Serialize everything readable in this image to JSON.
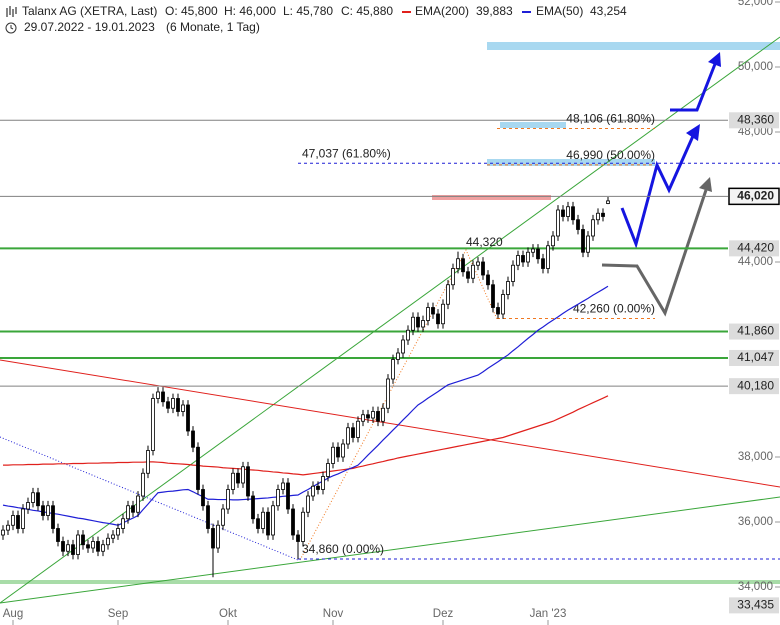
{
  "chart_data": {
    "type": "candlestick",
    "title": "Talanx AG (XETRA, Last)",
    "ohlc": [
      "O: 45,800",
      "H: 46,000",
      "L: 45,780",
      "C: 45,880"
    ],
    "date_range": "29.07.2022 - 19.01.2023",
    "period": "(6 Monate, 1 Tag)",
    "categories": [
      null,
      null,
      "Aug",
      null,
      null,
      null,
      null,
      null,
      null,
      null,
      null,
      null,
      null,
      null,
      null,
      null,
      null,
      null,
      null,
      null,
      null,
      null,
      null,
      "Sep",
      null,
      null,
      null,
      null,
      null,
      null,
      null,
      null,
      null,
      null,
      null,
      null,
      null,
      null,
      null,
      null,
      null,
      null,
      null,
      null,
      null,
      "Okt",
      null,
      null,
      null,
      null,
      null,
      null,
      null,
      null,
      null,
      null,
      null,
      null,
      null,
      null,
      null,
      null,
      null,
      null,
      null,
      null,
      "Nov",
      null,
      null,
      null,
      null,
      null,
      null,
      null,
      null,
      null,
      null,
      null,
      null,
      null,
      null,
      null,
      null,
      null,
      null,
      null,
      null,
      null,
      "Dez",
      null,
      null,
      null,
      null,
      null,
      null,
      null,
      null,
      null,
      null,
      null,
      null,
      null,
      null,
      null,
      null,
      null,
      null,
      null,
      null,
      "Jan '23",
      null,
      null,
      null,
      null,
      null,
      null,
      null,
      null,
      null,
      null,
      null,
      null
    ],
    "candles": [
      [
        35600,
        35900,
        35450,
        35750
      ],
      [
        35750,
        36050,
        35600,
        35900
      ],
      [
        35900,
        36350,
        35750,
        36200
      ],
      [
        36200,
        36350,
        35650,
        35800
      ],
      [
        35800,
        36550,
        35650,
        36400
      ],
      [
        36400,
        36750,
        36250,
        36600
      ],
      [
        36600,
        37050,
        36450,
        36900
      ],
      [
        36900,
        37050,
        36350,
        36500
      ],
      [
        36500,
        36650,
        36050,
        36200
      ],
      [
        36200,
        36650,
        36050,
        36500
      ],
      [
        36500,
        36650,
        35650,
        35800
      ],
      [
        35800,
        35950,
        35250,
        35400
      ],
      [
        35400,
        35550,
        34950,
        35100
      ],
      [
        35100,
        35450,
        34950,
        35300
      ],
      [
        35300,
        35450,
        34850,
        35000
      ],
      [
        35000,
        35750,
        34850,
        35600
      ],
      [
        35600,
        35750,
        35150,
        35300
      ],
      [
        35300,
        35450,
        35050,
        35200
      ],
      [
        35200,
        35550,
        35050,
        35400
      ],
      [
        35400,
        35550,
        34950,
        35100
      ],
      [
        35100,
        35450,
        34950,
        35300
      ],
      [
        35300,
        35650,
        35150,
        35500
      ],
      [
        35500,
        35750,
        35350,
        35600
      ],
      [
        35600,
        35950,
        35450,
        35800
      ],
      [
        35800,
        36250,
        35650,
        36100
      ],
      [
        36100,
        36650,
        35950,
        36500
      ],
      [
        36500,
        36650,
        36150,
        36300
      ],
      [
        36300,
        36950,
        36150,
        36800
      ],
      [
        36800,
        37650,
        36650,
        37500
      ],
      [
        37500,
        38350,
        37350,
        38200
      ],
      [
        38200,
        39950,
        38050,
        39800
      ],
      [
        39800,
        40150,
        39650,
        40000
      ],
      [
        40000,
        40150,
        39550,
        39700
      ],
      [
        39700,
        39850,
        39350,
        39500
      ],
      [
        39500,
        39950,
        39350,
        39800
      ],
      [
        39800,
        39950,
        39250,
        39400
      ],
      [
        39400,
        39750,
        39250,
        39600
      ],
      [
        39600,
        39750,
        38650,
        38800
      ],
      [
        38800,
        38950,
        38150,
        38300
      ],
      [
        38300,
        38450,
        36850,
        37000
      ],
      [
        37000,
        37150,
        36350,
        36500
      ],
      [
        36500,
        36650,
        35650,
        35800
      ],
      [
        35800,
        35950,
        34300,
        35200
      ],
      [
        35200,
        36050,
        35050,
        35900
      ],
      [
        35900,
        36550,
        35750,
        36400
      ],
      [
        36400,
        37150,
        36250,
        37000
      ],
      [
        37000,
        37650,
        36850,
        37500
      ],
      [
        37500,
        37650,
        37050,
        37200
      ],
      [
        37200,
        37850,
        37050,
        37700
      ],
      [
        37700,
        37850,
        36650,
        36800
      ],
      [
        36800,
        36950,
        35950,
        36100
      ],
      [
        36100,
        36250,
        35650,
        35800
      ],
      [
        35800,
        36450,
        35650,
        36300
      ],
      [
        36300,
        36450,
        35450,
        35600
      ],
      [
        35600,
        36650,
        35450,
        36500
      ],
      [
        36500,
        37150,
        36350,
        37000
      ],
      [
        37000,
        37350,
        36850,
        37200
      ],
      [
        37200,
        37350,
        36250,
        36400
      ],
      [
        36400,
        36550,
        35450,
        35600
      ],
      [
        35600,
        35750,
        34860,
        35400
      ],
      [
        35400,
        36450,
        35250,
        36300
      ],
      [
        36300,
        36950,
        36150,
        36800
      ],
      [
        36800,
        37250,
        36650,
        37100
      ],
      [
        37100,
        37250,
        36850,
        37000
      ],
      [
        37000,
        37550,
        36850,
        37400
      ],
      [
        37400,
        37950,
        37250,
        37800
      ],
      [
        37800,
        38450,
        37650,
        38300
      ],
      [
        38300,
        38450,
        37850,
        38000
      ],
      [
        38000,
        38550,
        37850,
        38400
      ],
      [
        38400,
        39050,
        38250,
        38900
      ],
      [
        38900,
        39050,
        38450,
        38600
      ],
      [
        38600,
        39250,
        38450,
        39100
      ],
      [
        39100,
        39450,
        38950,
        39300
      ],
      [
        39300,
        39450,
        39050,
        39200
      ],
      [
        39200,
        39550,
        39050,
        39400
      ],
      [
        39400,
        39550,
        38950,
        39100
      ],
      [
        39100,
        39650,
        38950,
        39500
      ],
      [
        39500,
        40550,
        39350,
        40400
      ],
      [
        40400,
        41150,
        40250,
        41000
      ],
      [
        41000,
        41350,
        40850,
        41200
      ],
      [
        41200,
        41750,
        41050,
        41600
      ],
      [
        41600,
        42050,
        41450,
        41900
      ],
      [
        41900,
        42450,
        41750,
        42300
      ],
      [
        42300,
        42450,
        41850,
        42000
      ],
      [
        42000,
        42350,
        41850,
        42200
      ],
      [
        42200,
        42750,
        42050,
        42600
      ],
      [
        42600,
        42750,
        42250,
        42400
      ],
      [
        42400,
        42550,
        41950,
        42100
      ],
      [
        42100,
        42850,
        41950,
        42700
      ],
      [
        42700,
        43450,
        42550,
        43300
      ],
      [
        43300,
        43950,
        43150,
        43800
      ],
      [
        43800,
        44320,
        43650,
        44100
      ],
      [
        44100,
        44250,
        43550,
        43700
      ],
      [
        43700,
        43850,
        43350,
        43500
      ],
      [
        43500,
        44050,
        43350,
        43900
      ],
      [
        43900,
        44150,
        43750,
        44000
      ],
      [
        44000,
        44150,
        43450,
        43600
      ],
      [
        43600,
        43750,
        43150,
        43300
      ],
      [
        43300,
        43450,
        42450,
        42600
      ],
      [
        42600,
        42750,
        42260,
        42400
      ],
      [
        42400,
        43150,
        42250,
        43000
      ],
      [
        43000,
        43550,
        42850,
        43400
      ],
      [
        43400,
        44050,
        43250,
        43900
      ],
      [
        43900,
        44350,
        43750,
        44200
      ],
      [
        44200,
        44350,
        43850,
        44000
      ],
      [
        44000,
        44450,
        43850,
        44300
      ],
      [
        44300,
        44550,
        44150,
        44400
      ],
      [
        44400,
        44550,
        43950,
        44100
      ],
      [
        44100,
        44250,
        43650,
        43800
      ],
      [
        43800,
        44650,
        43650,
        44500
      ],
      [
        44500,
        44950,
        44350,
        44800
      ],
      [
        44800,
        45750,
        44650,
        45600
      ],
      [
        45600,
        45750,
        45250,
        45400
      ],
      [
        45400,
        45850,
        45250,
        45700
      ],
      [
        45700,
        45850,
        45150,
        45300
      ],
      [
        45300,
        45450,
        44850,
        45000
      ],
      [
        45000,
        45150,
        44150,
        44300
      ],
      [
        44300,
        44950,
        44150,
        44800
      ],
      [
        44800,
        45450,
        44650,
        45300
      ],
      [
        45300,
        45650,
        45150,
        45500
      ],
      [
        45500,
        45650,
        45250,
        45400
      ],
      [
        45800,
        46000,
        45780,
        45880
      ]
    ],
    "series": [
      {
        "name": "EMA(200)",
        "color": "#e0201c",
        "last_label": "39,883",
        "values": [
          37750,
          37750,
          37760,
          37760,
          37760,
          37770,
          37770,
          37770,
          37780,
          37780,
          37780,
          37790,
          37790,
          37790,
          37800,
          37800,
          37800,
          37810,
          37810,
          37810,
          37820,
          37820,
          37820,
          37830,
          37830,
          37830,
          37840,
          37840,
          37840,
          37850,
          37850,
          37840,
          37830,
          37810,
          37800,
          37790,
          37780,
          37770,
          37750,
          37740,
          37720,
          37710,
          37700,
          37690,
          37670,
          37660,
          37650,
          37640,
          37630,
          37610,
          37600,
          37590,
          37570,
          37560,
          37540,
          37530,
          37510,
          37500,
          37480,
          37470,
          37450,
          37470,
          37490,
          37510,
          37530,
          37550,
          37570,
          37590,
          37610,
          37630,
          37650,
          37690,
          37720,
          37760,
          37790,
          37830,
          37860,
          37900,
          37930,
          37970,
          38000,
          38030,
          38060,
          38090,
          38120,
          38150,
          38180,
          38210,
          38240,
          38270,
          38300,
          38330,
          38360,
          38390,
          38420,
          38450,
          38480,
          38510,
          38540,
          38570,
          38600,
          38650,
          38700,
          38750,
          38800,
          38850,
          38900,
          38950,
          39000,
          39050,
          39100,
          39170,
          39240,
          39310,
          39380,
          39460,
          39530,
          39600,
          39670,
          39740,
          39810,
          39883
        ]
      },
      {
        "name": "EMA(50)",
        "color": "#1f1fd6",
        "last_label": "43,254",
        "values": [
          36520,
          36490,
          36470,
          36440,
          36420,
          36390,
          36360,
          36340,
          36310,
          36290,
          36260,
          36240,
          36210,
          36180,
          36150,
          36120,
          36100,
          36070,
          36040,
          36010,
          35980,
          35960,
          35930,
          35900,
          35970,
          36050,
          36120,
          36200,
          36380,
          36550,
          36730,
          36900,
          36920,
          36940,
          36950,
          36970,
          36990,
          37000,
          36930,
          36850,
          36780,
          36700,
          36700,
          36690,
          36690,
          36690,
          36680,
          36680,
          36690,
          36700,
          36710,
          36720,
          36730,
          36740,
          36760,
          36770,
          36790,
          36800,
          36820,
          36830,
          36920,
          37000,
          37090,
          37180,
          37260,
          37350,
          37420,
          37480,
          37550,
          37620,
          37680,
          37750,
          37900,
          38060,
          38210,
          38360,
          38520,
          38670,
          38830,
          38980,
          39140,
          39290,
          39450,
          39600,
          39700,
          39810,
          39910,
          40010,
          40120,
          40220,
          40270,
          40320,
          40370,
          40420,
          40470,
          40520,
          40620,
          40730,
          40830,
          40930,
          41040,
          41140,
          41270,
          41390,
          41520,
          41650,
          41770,
          41900,
          42000,
          42110,
          42210,
          42310,
          42420,
          42520,
          42610,
          42700,
          42790,
          42880,
          42980,
          43070,
          43160,
          43254
        ]
      }
    ],
    "ylim": [
      34000,
      52000
    ],
    "yticks": [
      {
        "value": 34000,
        "label": "34,000"
      },
      {
        "value": 36000,
        "label": "36,000"
      },
      {
        "value": 38000,
        "label": "38,000"
      },
      {
        "value": 44000,
        "label": "44,000"
      },
      {
        "value": 48000,
        "label": "48,000"
      },
      {
        "value": 50000,
        "label": "50,000"
      },
      {
        "value": 52000,
        "label": "52,000"
      }
    ],
    "levels": [
      {
        "value": 48360,
        "label": "48,360",
        "color": "#808080"
      },
      {
        "value": 46020,
        "label": "46,020",
        "color": "#808080"
      },
      {
        "value": 44420,
        "label": "44,420",
        "color": "#3aa63a"
      },
      {
        "value": 41860,
        "label": "41,860",
        "color": "#3aa63a"
      },
      {
        "value": 41047,
        "label": "41,047",
        "color": "#3aa63a"
      },
      {
        "value": 40180,
        "label": "40,180",
        "color": "#808080"
      },
      {
        "value": 33435,
        "label": "33,435",
        "color": null
      }
    ],
    "annotations": [
      {
        "value": 47037,
        "label": "47,037 (61.80%)",
        "color": "#1f1fd6"
      },
      {
        "value": 46990,
        "label": "46,990 (50.00%)",
        "color": "#f07820"
      },
      {
        "value": 48106,
        "label": "48,106 (61.80%)",
        "color": "#f07820"
      },
      {
        "value": 42260,
        "label": "42,260 (0.00%)",
        "color": "#f07820"
      },
      {
        "value": 34860,
        "label": "34,860 (0.00%)",
        "color": "#1f1fd6"
      },
      {
        "value": 44320,
        "label": "44,320",
        "color": "#f07820"
      }
    ]
  }
}
